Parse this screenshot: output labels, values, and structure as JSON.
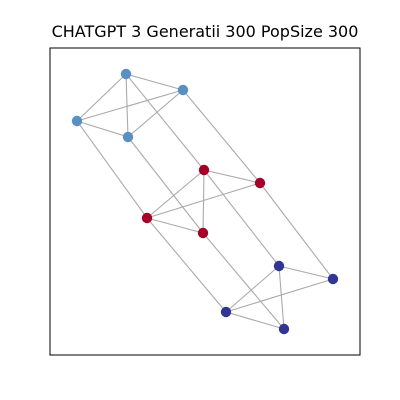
{
  "title": "CHATGPT 3 Generatii 300 PopSize 300",
  "colors": {
    "edge": "#aaaaaa",
    "group_blue": "#5a8fc3",
    "group_red": "#a50026",
    "group_navy": "#313695"
  },
  "nodes": [
    {
      "id": "b1",
      "group": "group_blue"
    },
    {
      "id": "b2",
      "group": "group_blue"
    },
    {
      "id": "b3",
      "group": "group_blue"
    },
    {
      "id": "b4",
      "group": "group_blue"
    },
    {
      "id": "r1",
      "group": "group_red"
    },
    {
      "id": "r2",
      "group": "group_red"
    },
    {
      "id": "r3",
      "group": "group_red"
    },
    {
      "id": "r4",
      "group": "group_red"
    },
    {
      "id": "n1",
      "group": "group_navy"
    },
    {
      "id": "n2",
      "group": "group_navy"
    },
    {
      "id": "n3",
      "group": "group_navy"
    },
    {
      "id": "n4",
      "group": "group_navy"
    }
  ],
  "edges": [
    [
      "b1",
      "b2"
    ],
    [
      "b1",
      "b3"
    ],
    [
      "b1",
      "b4"
    ],
    [
      "b2",
      "b3"
    ],
    [
      "b3",
      "b4"
    ],
    [
      "b2",
      "b4"
    ],
    [
      "r1",
      "r2"
    ],
    [
      "r1",
      "r3"
    ],
    [
      "r1",
      "r4"
    ],
    [
      "r2",
      "r3"
    ],
    [
      "r3",
      "r4"
    ],
    [
      "n1",
      "n2"
    ],
    [
      "n1",
      "n3"
    ],
    [
      "n1",
      "n4"
    ],
    [
      "n2",
      "n3"
    ],
    [
      "n3",
      "n4"
    ],
    [
      "b1",
      "r1"
    ],
    [
      "b2",
      "r2"
    ],
    [
      "b3",
      "r3"
    ],
    [
      "b4",
      "r4"
    ],
    [
      "r1",
      "n1"
    ],
    [
      "r2",
      "n2"
    ],
    [
      "r3",
      "n3"
    ],
    [
      "r4",
      "n4"
    ]
  ]
}
